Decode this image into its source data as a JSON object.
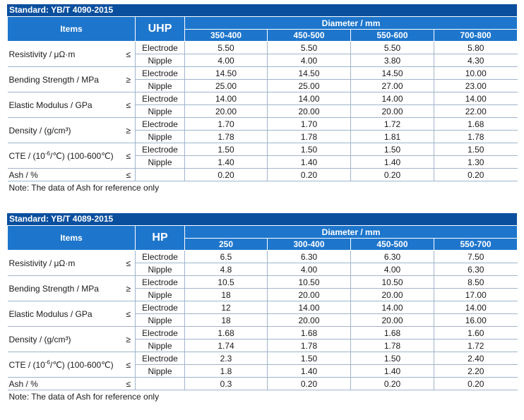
{
  "tables": [
    {
      "standard": "Standard: YB/T 4090-2015",
      "items_header": "Items",
      "grade": "UHP",
      "diameter_header": "Diameter / mm",
      "diameters": [
        "350-400",
        "450-500",
        "550-600",
        "700-800"
      ],
      "rows": [
        {
          "item": "Resistivity / μΩ·m",
          "sym": "≤",
          "type": "Electrode",
          "values": [
            "5.50",
            "5.50",
            "5.50",
            "5.80"
          ]
        },
        {
          "type": "Nipple",
          "values": [
            "4.00",
            "4.00",
            "3.80",
            "4.30"
          ]
        },
        {
          "item": "Bending Strength / MPa",
          "sym": "≥",
          "type": "Electrode",
          "values": [
            "14.50",
            "14.50",
            "14.50",
            "10.00"
          ]
        },
        {
          "type": "Nipple",
          "values": [
            "25.00",
            "25.00",
            "27.00",
            "23.00"
          ]
        },
        {
          "item": "Elastic Modulus / GPa",
          "sym": "≤",
          "type": "Electrode",
          "values": [
            "14.00",
            "14.00",
            "14.00",
            "14.00"
          ]
        },
        {
          "type": "Nipple",
          "values": [
            "20.00",
            "20.00",
            "20.00",
            "22.00"
          ]
        },
        {
          "item": "Density / (g/cm³)",
          "sym": "≥",
          "type": "Electrode",
          "values": [
            "1.70",
            "1.70",
            "1.72",
            "1.68"
          ]
        },
        {
          "type": "Nipple",
          "values": [
            "1.78",
            "1.78",
            "1.81",
            "1.78"
          ]
        },
        {
          "item": "CTE / (10-6/℃) (100-600℃)",
          "sym": "≤",
          "type": "Electrode",
          "values": [
            "1.50",
            "1.50",
            "1.50",
            "1.50"
          ]
        },
        {
          "type": "Nipple",
          "values": [
            "1.40",
            "1.40",
            "1.40",
            "1.30"
          ]
        },
        {
          "item": "Ash / %",
          "sym": "≤",
          "type": "",
          "values": [
            "0.20",
            "0.20",
            "0.20",
            "0.20"
          ]
        }
      ],
      "note": "Note: The data of Ash for reference only"
    },
    {
      "standard": "Standard: YB/T 4089-2015",
      "items_header": "Items",
      "grade": "HP",
      "diameter_header": "Diameter / mm",
      "diameters": [
        "250",
        "300-400",
        "450-500",
        "550-700"
      ],
      "rows": [
        {
          "item": "Resistivity / μΩ·m",
          "sym": "≤",
          "type": "Electrode",
          "values": [
            "6.5",
            "6.30",
            "6.30",
            "7.50"
          ]
        },
        {
          "type": "Nipple",
          "values": [
            "4.8",
            "4.00",
            "4.00",
            "6.30"
          ]
        },
        {
          "item": "Bending Strength / MPa",
          "sym": "≥",
          "type": "Electrode",
          "values": [
            "10.5",
            "10.50",
            "10.50",
            "8.50"
          ]
        },
        {
          "type": "Nipple",
          "values": [
            "18",
            "20.00",
            "20.00",
            "17.00"
          ]
        },
        {
          "item": "Elastic Modulus / GPa",
          "sym": "≤",
          "type": "Electrode",
          "values": [
            "12",
            "14.00",
            "14.00",
            "14.00"
          ]
        },
        {
          "type": "Nipple",
          "values": [
            "18",
            "20.00",
            "20.00",
            "16.00"
          ]
        },
        {
          "item": "Density / (g/cm³)",
          "sym": "≥",
          "type": "Electrode",
          "values": [
            "1.68",
            "1.68",
            "1.68",
            "1.60"
          ]
        },
        {
          "type": "Nipple",
          "values": [
            "1.74",
            "1.78",
            "1.78",
            "1.72"
          ]
        },
        {
          "item": "CTE / (10-6/℃) (100-600℃)",
          "sym": "≤",
          "type": "Electrode",
          "values": [
            "2.3",
            "1.50",
            "1.50",
            "2.40"
          ]
        },
        {
          "type": "Nipple",
          "values": [
            "1.8",
            "1.40",
            "1.40",
            "2.20"
          ]
        },
        {
          "item": "Ash / %",
          "sym": "≤",
          "type": "",
          "values": [
            "0.3",
            "0.20",
            "0.20",
            "0.20"
          ]
        }
      ],
      "note": "Note: The data of Ash for reference only"
    }
  ]
}
